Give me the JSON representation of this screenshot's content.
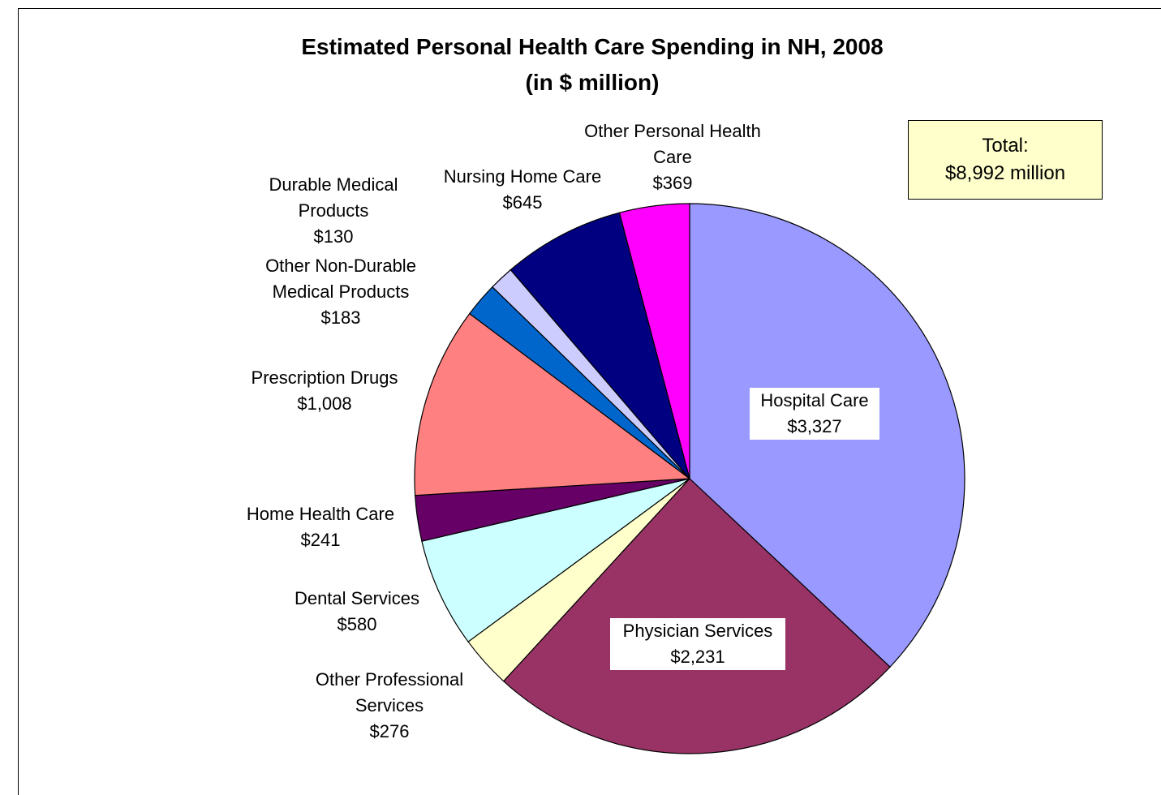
{
  "chart_data": {
    "type": "pie",
    "title": "Estimated Personal Health Care Spending in NH, 2008",
    "subtitle": "(in $ million)",
    "annotation": [
      "Total:",
      "$8,992 million"
    ],
    "categories": [
      "Hospital Care",
      "Physician Services",
      "Other Professional Services",
      "Dental Services",
      "Home Health Care",
      "Prescription Drugs",
      "Other Non-Durable Medical Products",
      "Durable Medical Products",
      "Nursing Home Care",
      "Other Personal Health Care"
    ],
    "values": [
      3327,
      2231,
      276,
      580,
      241,
      1008,
      183,
      130,
      645,
      369
    ],
    "value_labels": [
      "$3,327",
      "$2,231",
      "$276",
      "$580",
      "$241",
      "$1,008",
      "$183",
      "$130",
      "$645",
      "$369"
    ],
    "colors": [
      "#9999ff",
      "#993366",
      "#ffffcc",
      "#ccffff",
      "#660066",
      "#ff8080",
      "#0066cc",
      "#ccccff",
      "#000080",
      "#ff00ff"
    ]
  }
}
